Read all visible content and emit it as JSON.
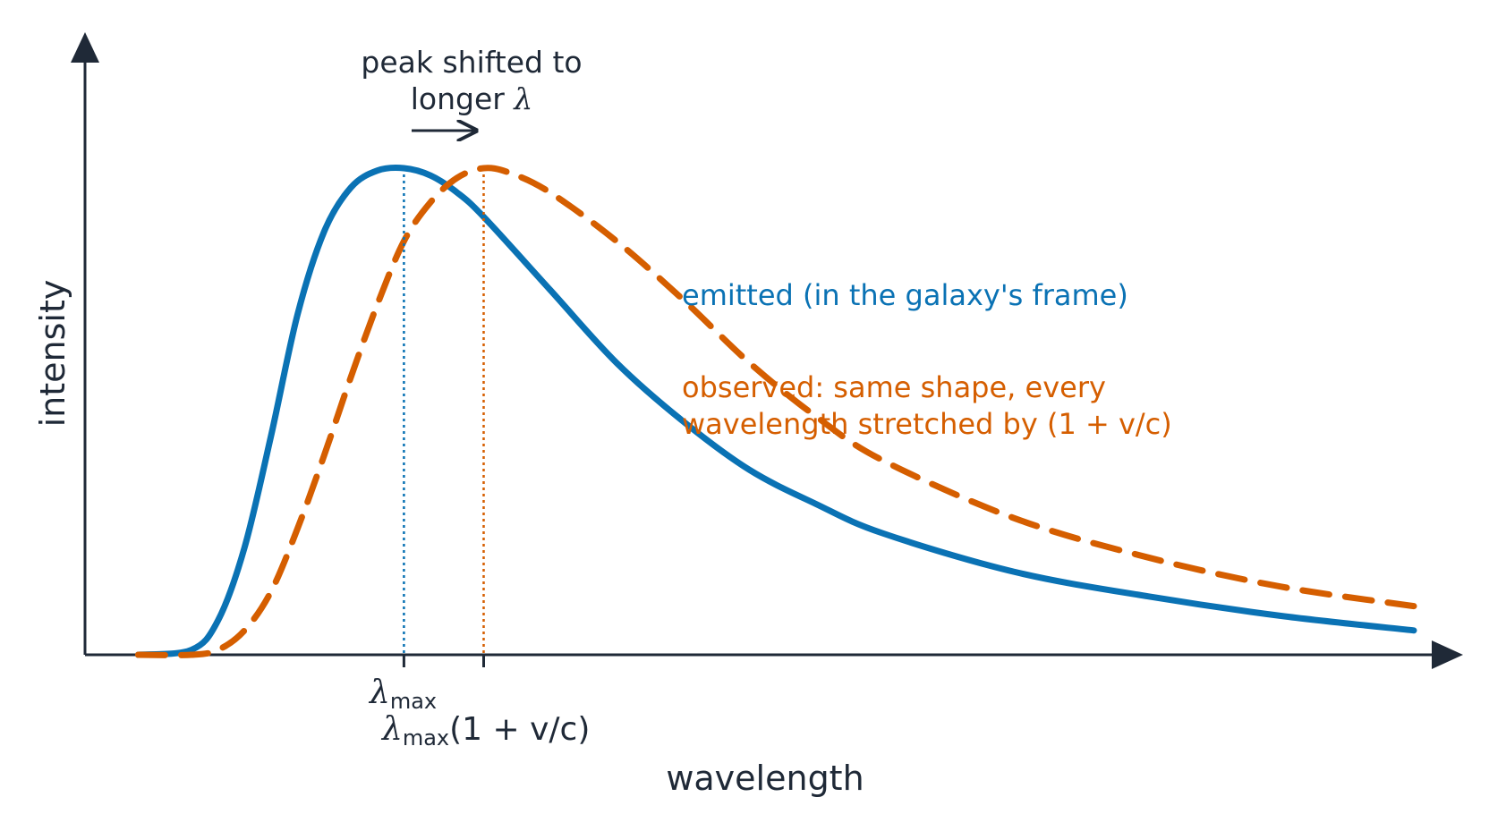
{
  "colors": {
    "axis": "#1f2937",
    "emitted": "#0a72b4",
    "observed": "#d55e00"
  },
  "chart_data": {
    "type": "line",
    "xlabel": "wavelength",
    "ylabel": "intensity",
    "grid": false,
    "legend": "none",
    "x_range": [
      0,
      10
    ],
    "y_range": [
      0,
      1
    ],
    "series": [
      {
        "name": "emitted (in the galaxy's frame)",
        "style": "solid",
        "color": "#0a72b4",
        "peak_x": 2.4,
        "x": [
          0.4,
          0.8,
          1.0,
          1.2,
          1.4,
          1.6,
          1.8,
          2.0,
          2.2,
          2.4,
          2.6,
          2.8,
          3.0,
          3.5,
          4.0,
          4.5,
          5.0,
          5.5,
          6.0,
          7.0,
          8.0,
          9.0,
          10.0
        ],
        "y": [
          0.0,
          0.01,
          0.07,
          0.22,
          0.45,
          0.7,
          0.87,
          0.96,
          0.995,
          1.0,
          0.985,
          0.95,
          0.9,
          0.75,
          0.6,
          0.48,
          0.38,
          0.31,
          0.25,
          0.17,
          0.12,
          0.08,
          0.05
        ]
      },
      {
        "name": "observed: same shape, every wavelength stretched by (1 + v/c)",
        "style": "dashed",
        "color": "#d55e00",
        "peak_x": 3.0,
        "x": [
          0.4,
          0.8,
          1.0,
          1.2,
          1.4,
          1.6,
          1.8,
          2.0,
          2.2,
          2.4,
          2.6,
          2.8,
          3.0,
          3.2,
          3.5,
          4.0,
          4.5,
          5.0,
          5.5,
          6.0,
          7.0,
          8.0,
          9.0,
          10.0
        ],
        "y": [
          0.0,
          0.0,
          0.01,
          0.05,
          0.13,
          0.26,
          0.41,
          0.57,
          0.72,
          0.85,
          0.93,
          0.98,
          1.0,
          0.99,
          0.95,
          0.85,
          0.73,
          0.6,
          0.49,
          0.4,
          0.28,
          0.2,
          0.14,
          0.1
        ]
      }
    ],
    "markers": [
      {
        "x": 2.4,
        "label_main": "λ",
        "label_sub": "max",
        "label_rest": ""
      },
      {
        "x": 3.0,
        "label_main": "λ",
        "label_sub": "max",
        "label_rest": "(1 + v/c)"
      }
    ],
    "annotation": {
      "line1": "peak shifted to",
      "line2_text": "longer ",
      "line2_symbol": "λ"
    }
  }
}
